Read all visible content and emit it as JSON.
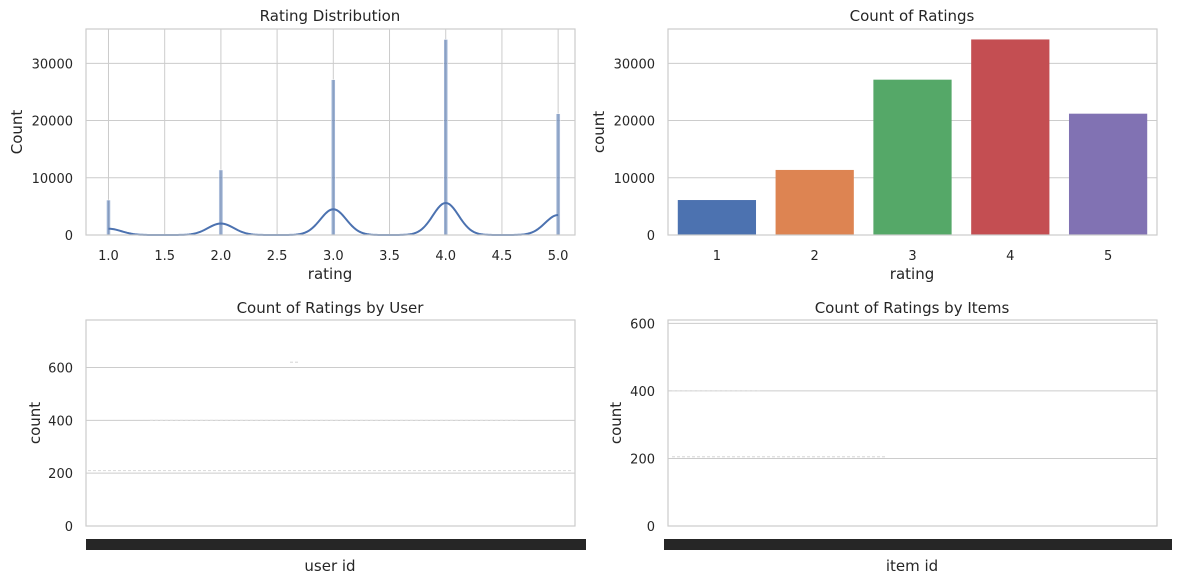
{
  "chart_data": [
    {
      "id": "hist",
      "type": "histogram",
      "title": "Rating Distribution",
      "xlabel": "rating",
      "ylabel": "Count",
      "xlim": [
        0.8,
        5.15
      ],
      "ylim": [
        0,
        36000
      ],
      "xticks": [
        1.0,
        1.5,
        2.0,
        2.5,
        3.0,
        3.5,
        4.0,
        4.5,
        5.0
      ],
      "xtick_labels": [
        "1.0",
        "1.5",
        "2.0",
        "2.5",
        "3.0",
        "3.5",
        "4.0",
        "4.5",
        "5.0"
      ],
      "yticks": [
        0,
        10000,
        20000,
        30000
      ],
      "ytick_labels": [
        "0",
        "10000",
        "20000",
        "30000"
      ],
      "bars": [
        {
          "x": 1,
          "count": 6110
        },
        {
          "x": 2,
          "count": 11370
        },
        {
          "x": 3,
          "count": 27145
        },
        {
          "x": 4,
          "count": 34174
        },
        {
          "x": 5,
          "count": 21201
        }
      ],
      "kde_peaks": [
        {
          "x": 1,
          "y": 1100
        },
        {
          "x": 2,
          "y": 2000
        },
        {
          "x": 3,
          "y": 4500
        },
        {
          "x": 4,
          "y": 5600
        },
        {
          "x": 5,
          "y": 3500
        }
      ],
      "color": "#4c72b0",
      "grid": true
    },
    {
      "id": "bar",
      "type": "bar",
      "title": "Count of Ratings",
      "xlabel": "rating",
      "ylabel": "count",
      "ylim": [
        0,
        36000
      ],
      "categories": [
        "1",
        "2",
        "3",
        "4",
        "5"
      ],
      "values": [
        6110,
        11370,
        27145,
        34174,
        21201
      ],
      "colors": [
        "#4c72b0",
        "#dd8452",
        "#55a868",
        "#c44e52",
        "#8172b3"
      ],
      "yticks": [
        0,
        10000,
        20000,
        30000
      ],
      "ytick_labels": [
        "0",
        "10000",
        "20000",
        "30000"
      ],
      "grid": true
    },
    {
      "id": "user",
      "type": "bar",
      "title": "Count of Ratings by User",
      "xlabel": "user id",
      "ylabel": "count",
      "ylim": [
        0,
        780
      ],
      "yticks": [
        0,
        200,
        400,
        600
      ],
      "ytick_labels": [
        "0",
        "200",
        "400",
        "600"
      ],
      "grid": true
    },
    {
      "id": "item",
      "type": "bar",
      "title": "Count of Ratings by Items",
      "xlabel": "item id",
      "ylabel": "count",
      "ylim": [
        0,
        610
      ],
      "yticks": [
        0,
        200,
        400,
        600
      ],
      "ytick_labels": [
        "0",
        "200",
        "400",
        "600"
      ],
      "grid": true
    }
  ]
}
